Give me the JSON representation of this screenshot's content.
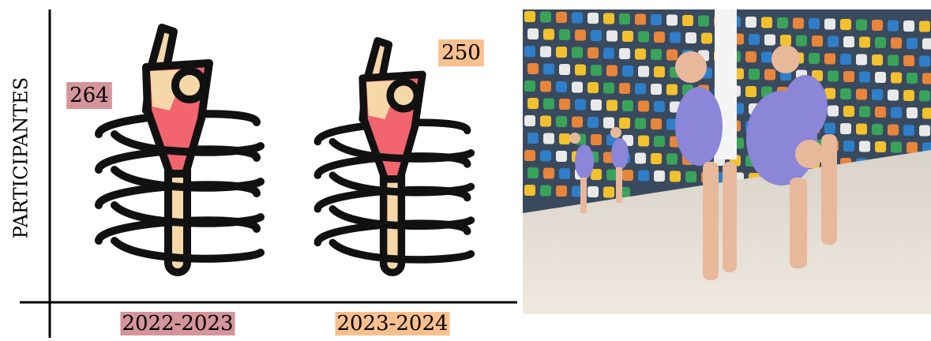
{
  "chart_data": {
    "type": "pictogram",
    "y_label": "PARTICIPANTES",
    "categories": [
      "2022-2023",
      "2023-2024"
    ],
    "values": [
      264,
      250
    ],
    "colors": [
      "#d4959a",
      "#f9c08f"
    ]
  }
}
